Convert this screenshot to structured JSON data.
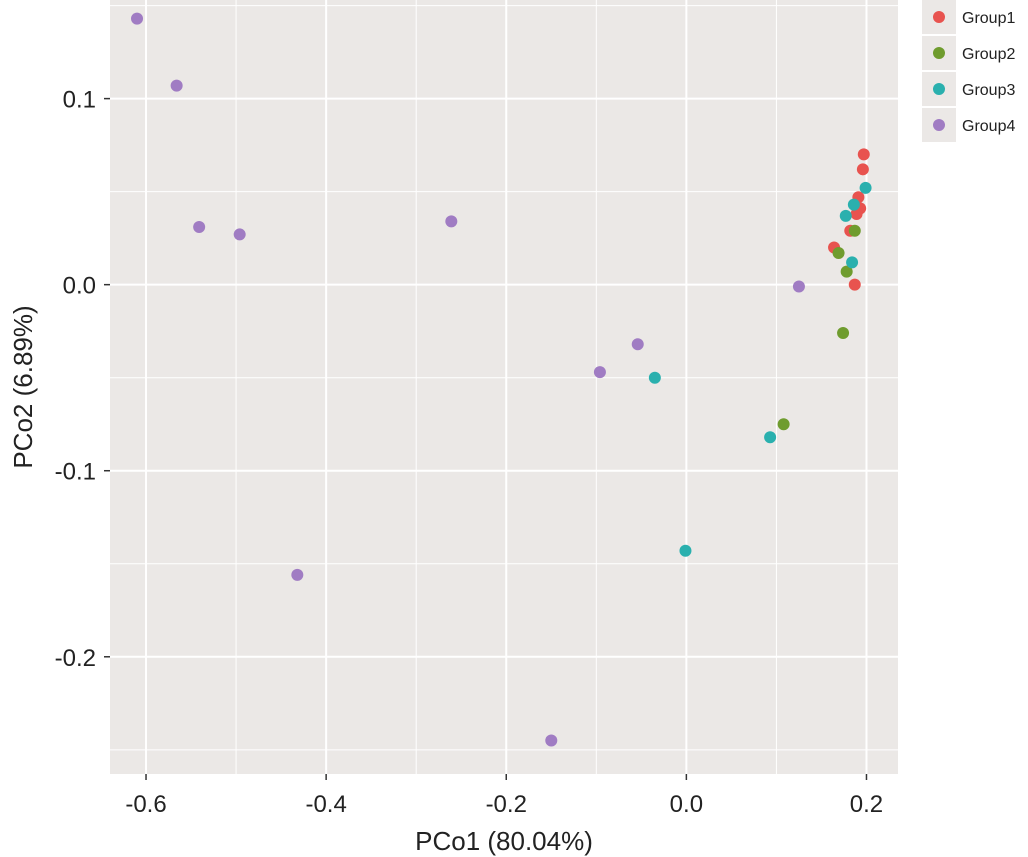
{
  "chart_data": {
    "type": "scatter",
    "title": "",
    "xlabel": "PCo1 (80.04%)",
    "ylabel": "PCo2 (6.89%)",
    "xlim": [
      -0.64,
      0.235
    ],
    "ylim": [
      -0.263,
      0.153
    ],
    "x_ticks": [
      -0.6,
      -0.4,
      -0.2,
      0.0,
      0.2
    ],
    "x_tick_labels": [
      "-0.6",
      "-0.4",
      "-0.2",
      "0.0",
      "0.2"
    ],
    "y_ticks": [
      -0.2,
      -0.1,
      0.0,
      0.1
    ],
    "y_tick_labels": [
      "-0.2",
      "-0.1",
      "0.0",
      "0.1"
    ],
    "grid": true,
    "legend_position": "right-top",
    "series": [
      {
        "name": "Group1",
        "color": "#e8534f",
        "points": [
          [
            0.197,
            0.07
          ],
          [
            0.196,
            0.062
          ],
          [
            0.191,
            0.047
          ],
          [
            0.193,
            0.041
          ],
          [
            0.189,
            0.038
          ],
          [
            0.182,
            0.029
          ],
          [
            0.164,
            0.02
          ],
          [
            0.187,
            0.0
          ]
        ]
      },
      {
        "name": "Group2",
        "color": "#6f9c2e",
        "points": [
          [
            0.187,
            0.029
          ],
          [
            0.169,
            0.017
          ],
          [
            0.178,
            0.007
          ],
          [
            0.174,
            -0.026
          ],
          [
            0.108,
            -0.075
          ]
        ]
      },
      {
        "name": "Group3",
        "color": "#2ab0ae",
        "points": [
          [
            0.199,
            0.052
          ],
          [
            0.186,
            0.043
          ],
          [
            0.177,
            0.037
          ],
          [
            0.184,
            0.012
          ],
          [
            -0.035,
            -0.05
          ],
          [
            0.093,
            -0.082
          ],
          [
            -0.001,
            -0.143
          ]
        ]
      },
      {
        "name": "Group4",
        "color": "#a07cc3",
        "points": [
          [
            -0.61,
            0.143
          ],
          [
            -0.566,
            0.107
          ],
          [
            -0.541,
            0.031
          ],
          [
            -0.496,
            0.027
          ],
          [
            -0.261,
            0.034
          ],
          [
            0.125,
            -0.001
          ],
          [
            -0.054,
            -0.032
          ],
          [
            -0.096,
            -0.047
          ],
          [
            -0.432,
            -0.156
          ],
          [
            -0.15,
            -0.245
          ]
        ]
      }
    ]
  },
  "colors": {
    "panel_background": "#ebe8e6",
    "gridline": "#ffffff",
    "text": "#222222"
  }
}
